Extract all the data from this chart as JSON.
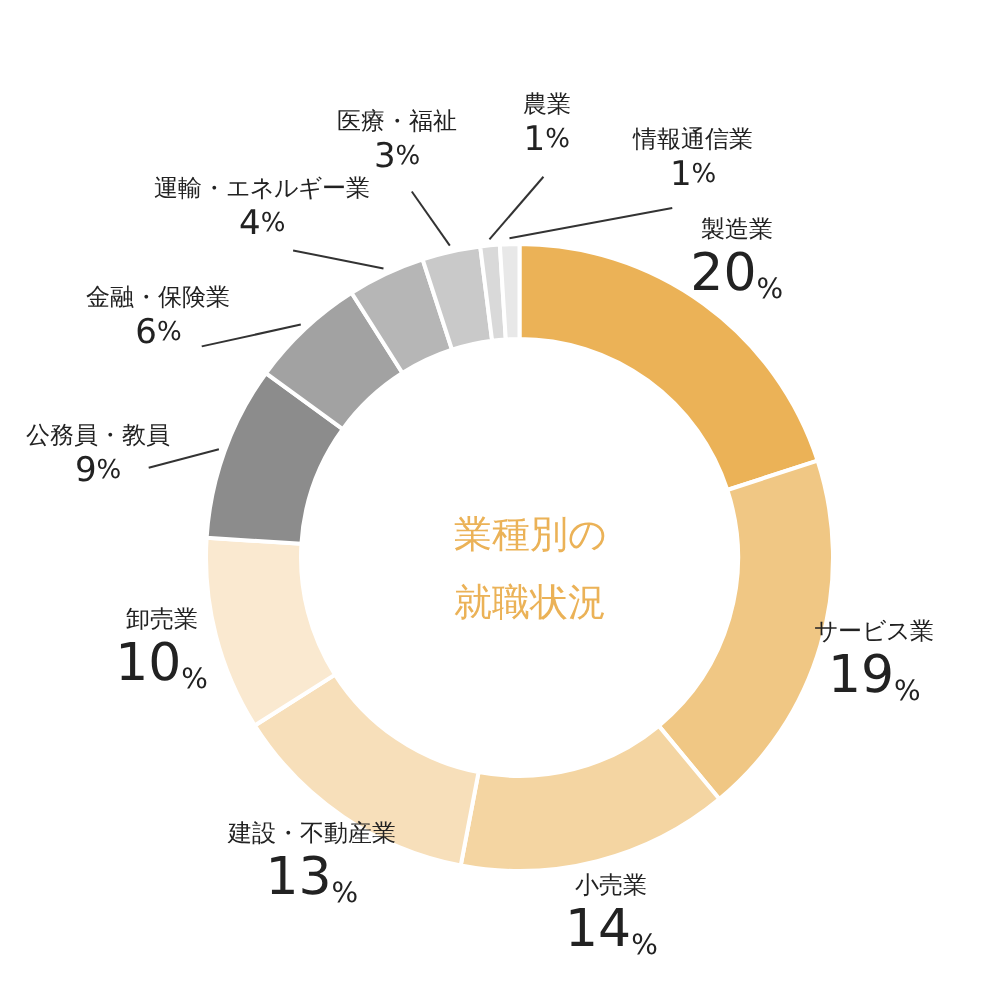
{
  "chart_data": {
    "type": "donut",
    "title": "業種別の就職状況",
    "categories": [
      "製造業",
      "サービス業",
      "小売業",
      "建設・不動産業",
      "卸売業",
      "公務員・教員",
      "金融・保険業",
      "運輸・エネルギー業",
      "医療・福祉",
      "農業",
      "情報通信業"
    ],
    "values": [
      20,
      19,
      14,
      13,
      10,
      9,
      6,
      4,
      3,
      1,
      1
    ],
    "value_labels": [
      "20%",
      "19%",
      "14%",
      "13%",
      "10%",
      "9%",
      "6%",
      "4%",
      "3%",
      "1%",
      "1%"
    ],
    "colors": [
      "#ebb257",
      "#f0c784",
      "#f4d5a2",
      "#f7dfba",
      "#fae9d0",
      "#8c8c8c",
      "#a2a2a2",
      "#b6b6b6",
      "#c9c9c9",
      "#d9d9d9",
      "#e8e8e8"
    ],
    "legend": false
  }
}
